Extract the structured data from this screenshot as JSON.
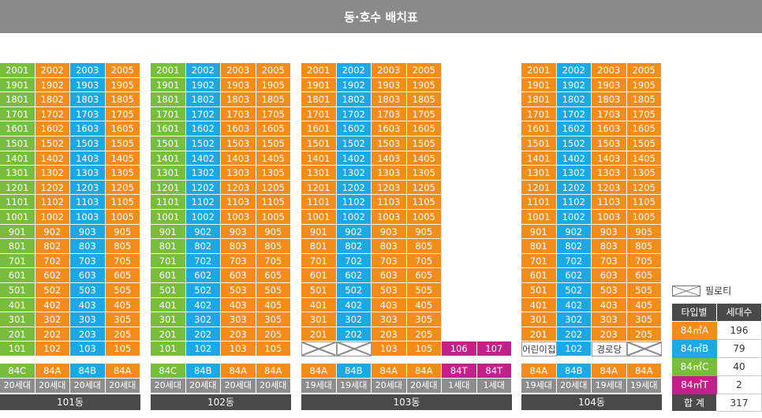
{
  "title": "동·호수 배치표",
  "colors": {
    "A": "#f28c1b",
    "B": "#1ca8e3",
    "C": "#79bd3f",
    "T": "#c3208a"
  },
  "floors": [
    20,
    19,
    18,
    17,
    16,
    15,
    14,
    13,
    12,
    11,
    10,
    9,
    8,
    7,
    6,
    5,
    4,
    3,
    2,
    1
  ],
  "buildings": [
    {
      "name": "101동",
      "columns": [
        {
          "line": "01",
          "type": "84C",
          "units": "20세대",
          "color": "C"
        },
        {
          "line": "02",
          "type": "84A",
          "units": "20세대",
          "color": "A"
        },
        {
          "line": "03",
          "type": "84B",
          "units": "20세대",
          "color": "B"
        },
        {
          "line": "05",
          "type": "84A",
          "units": "20세대",
          "color": "A"
        }
      ]
    },
    {
      "name": "102동",
      "columns": [
        {
          "line": "01",
          "type": "84C",
          "units": "20세대",
          "color": "C"
        },
        {
          "line": "02",
          "type": "84B",
          "units": "20세대",
          "color": "B"
        },
        {
          "line": "03",
          "type": "84A",
          "units": "20세대",
          "color": "A"
        },
        {
          "line": "05",
          "type": "84A",
          "units": "20세대",
          "color": "A"
        }
      ]
    },
    {
      "name": "103동",
      "columns": [
        {
          "line": "01",
          "type": "84A",
          "units": "19세대",
          "color": "A",
          "first_floor": "piloti"
        },
        {
          "line": "02",
          "type": "84B",
          "units": "19세대",
          "color": "B",
          "first_floor": "piloti"
        },
        {
          "line": "03",
          "type": "84A",
          "units": "20세대",
          "color": "A"
        },
        {
          "line": "05",
          "type": "84A",
          "units": "20세대",
          "color": "A"
        },
        {
          "line": "06",
          "type": "84T",
          "units": "1세대",
          "color": "T",
          "only_first_floor": true
        },
        {
          "line": "07",
          "type": "84T",
          "units": "1세대",
          "color": "T",
          "only_first_floor": true
        }
      ]
    },
    {
      "name": "104동",
      "columns": [
        {
          "line": "01",
          "type": "84A",
          "units": "19세대",
          "color": "A",
          "first_floor_label": "어린이집"
        },
        {
          "line": "02",
          "type": "84B",
          "units": "20세대",
          "color": "B"
        },
        {
          "line": "03",
          "type": "84A",
          "units": "19세대",
          "color": "A",
          "first_floor_label": "경로당"
        },
        {
          "line": "05",
          "type": "84A",
          "units": "19세대",
          "color": "A",
          "first_floor": "piloti"
        }
      ]
    }
  ],
  "legend": {
    "piloti_label": "필로티",
    "headers": {
      "type": "타입별",
      "count": "세대수"
    },
    "rows": [
      {
        "label": "84㎡A",
        "count": "196",
        "color": "A"
      },
      {
        "label": "84㎡B",
        "count": "79",
        "color": "B"
      },
      {
        "label": "84㎡C",
        "count": "40",
        "color": "C"
      },
      {
        "label": "84㎡T",
        "count": "2",
        "color": "T"
      }
    ],
    "total_label": "합 계",
    "total": "317"
  }
}
